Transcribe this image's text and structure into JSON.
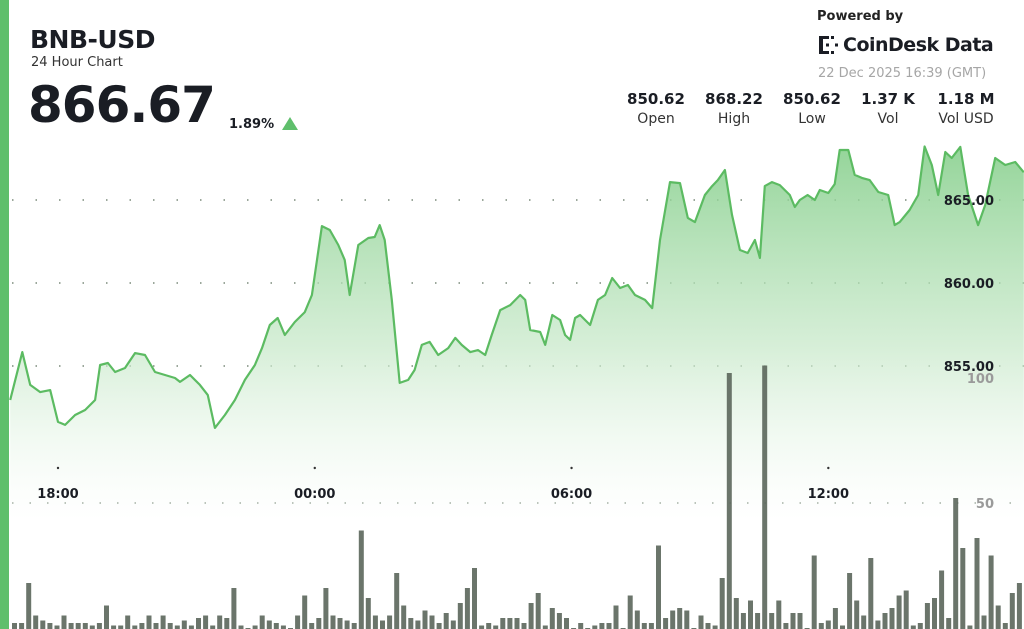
{
  "header": {
    "symbol": "BNB-USD",
    "subtitle": "24 Hour Chart",
    "price": "866.67",
    "change": "1.89%",
    "change_direction": "up"
  },
  "branding": {
    "powered_by": "Powered by",
    "logo_text": "CoinDesk Data",
    "timestamp": "22 Dec 2025 16:39 (GMT)"
  },
  "stats": [
    {
      "value": "850.62",
      "label": "Open"
    },
    {
      "value": "868.22",
      "label": "High"
    },
    {
      "value": "850.62",
      "label": "Low"
    },
    {
      "value": "1.37 K",
      "label": "Vol"
    },
    {
      "value": "1.18 M",
      "label": "Vol USD"
    }
  ],
  "colors": {
    "accent": "#5fbf6c",
    "line": "#5cbb62",
    "volume": "#5b665b"
  },
  "chart_data": {
    "type": "area",
    "price": {
      "x": [
        "16:53",
        "17:10",
        "17:21",
        "17:35",
        "17:49",
        "18:00",
        "18:10",
        "18:24",
        "18:38",
        "18:52",
        "18:59",
        "19:10",
        "19:20",
        "19:34",
        "19:48",
        "20:02",
        "20:16",
        "20:30",
        "20:44",
        "20:51",
        "21:05",
        "21:19",
        "21:30",
        "21:40",
        "21:54",
        "22:08",
        "22:22",
        "22:36",
        "22:46",
        "22:57",
        "23:08",
        "23:18",
        "23:32",
        "23:46",
        "23:56",
        "00:10",
        "00:21",
        "00:33",
        "00:42",
        "00:49",
        "01:01",
        "01:15",
        "01:24",
        "01:31",
        "01:38",
        "01:48",
        "01:59",
        "02:11",
        "02:20",
        "02:30",
        "02:41",
        "02:53",
        "03:07",
        "03:17",
        "03:26",
        "03:38",
        "03:49",
        "03:59",
        "04:08",
        "04:20",
        "04:34",
        "04:48",
        "04:55",
        "05:02",
        "05:16",
        "05:23",
        "05:33",
        "05:44",
        "05:51",
        "05:58",
        "06:05",
        "06:12",
        "06:26",
        "06:37",
        "06:47",
        "06:57",
        "07:08",
        "07:19",
        "07:29",
        "07:43",
        "07:53",
        "08:04",
        "08:18",
        "08:32",
        "08:43",
        "08:53",
        "09:07",
        "09:17",
        "09:25",
        "09:35",
        "09:45",
        "09:56",
        "10:07",
        "10:17",
        "10:24",
        "10:31",
        "10:41",
        "10:52",
        "11:06",
        "11:13",
        "11:20",
        "11:31",
        "11:41",
        "11:48",
        "12:00",
        "12:09",
        "12:16",
        "12:28",
        "12:37",
        "12:47",
        "12:58",
        "13:10",
        "13:24",
        "13:33",
        "13:40",
        "13:54",
        "14:06",
        "14:15",
        "14:25",
        "14:34",
        "14:44",
        "14:53",
        "15:05",
        "15:16",
        "15:30",
        "15:40",
        "15:54",
        "16:08",
        "16:22",
        "16:34"
      ],
      "y": [
        852.95,
        855.84,
        853.86,
        853.43,
        853.55,
        851.63,
        851.45,
        852.05,
        852.35,
        852.95,
        855.06,
        855.18,
        854.64,
        854.88,
        855.78,
        855.66,
        854.64,
        854.46,
        854.28,
        854.04,
        854.46,
        853.86,
        853.25,
        851.27,
        852.05,
        852.95,
        854.16,
        855.06,
        856.08,
        857.47,
        857.89,
        856.87,
        857.65,
        858.25,
        859.28,
        863.43,
        863.19,
        862.29,
        861.39,
        859.28,
        862.29,
        862.71,
        862.77,
        863.49,
        862.59,
        858.98,
        853.98,
        854.16,
        854.76,
        856.27,
        856.45,
        855.66,
        856.08,
        856.69,
        856.27,
        855.84,
        855.96,
        855.66,
        856.87,
        858.37,
        858.67,
        859.28,
        858.98,
        857.17,
        857.05,
        856.27,
        858.07,
        857.77,
        856.87,
        856.57,
        857.89,
        858.07,
        857.47,
        858.98,
        859.28,
        860.3,
        859.7,
        859.88,
        859.28,
        858.98,
        858.49,
        862.59,
        866.08,
        866.02,
        863.92,
        863.67,
        865.3,
        865.84,
        866.2,
        866.81,
        864.1,
        861.99,
        861.81,
        862.59,
        861.51,
        865.84,
        866.08,
        865.9,
        865.3,
        864.58,
        865.0,
        865.3,
        865.0,
        865.6,
        865.42,
        865.96,
        868.01,
        868.01,
        866.51,
        866.33,
        866.2,
        865.48,
        865.3,
        863.49,
        863.67,
        864.4,
        865.3,
        868.22,
        867.11,
        865.3,
        867.89,
        867.53,
        868.2,
        865.3,
        863.49,
        864.7,
        867.53,
        867.11,
        867.29,
        866.67
      ]
    },
    "volume": [
      2,
      2,
      18,
      5,
      3,
      2,
      1,
      5,
      2,
      2,
      2,
      1,
      2,
      9,
      1,
      1,
      5,
      1,
      2,
      5,
      2,
      5,
      2,
      1,
      3,
      1,
      4,
      5,
      1,
      5,
      4,
      16,
      1,
      0,
      1,
      5,
      3,
      2,
      1,
      0,
      5,
      13,
      2,
      4,
      16,
      5,
      4,
      3,
      2,
      39,
      12,
      5,
      3,
      5,
      22,
      9,
      4,
      3,
      7,
      5,
      2,
      6,
      3,
      10,
      16,
      24,
      1,
      2,
      1,
      4,
      4,
      4,
      2,
      10,
      14,
      1,
      8,
      6,
      4,
      0,
      2,
      0,
      1,
      2,
      2,
      9,
      0,
      13,
      7,
      2,
      2,
      33,
      4,
      7,
      8,
      7,
      0,
      5,
      2,
      1,
      20,
      102,
      12,
      6,
      11,
      6,
      105,
      6,
      11,
      2,
      6,
      6,
      0,
      29,
      2,
      3,
      8,
      1,
      22,
      11,
      5,
      28,
      3,
      6,
      8,
      13,
      15,
      1,
      2,
      10,
      12,
      23,
      4,
      52,
      32,
      1,
      36,
      5,
      29,
      9,
      2,
      14,
      18
    ],
    "x_ticks": [
      "18:00",
      "00:00",
      "06:00",
      "12:00"
    ],
    "price_ticks": [
      "865.00",
      "860.00",
      "855.00"
    ],
    "volume_ticks": [
      "100",
      "50"
    ],
    "price_ylim": [
      849,
      871
    ],
    "volume_ylim": [
      0,
      100
    ],
    "grid": "dotted horizontal",
    "legend": "none"
  }
}
